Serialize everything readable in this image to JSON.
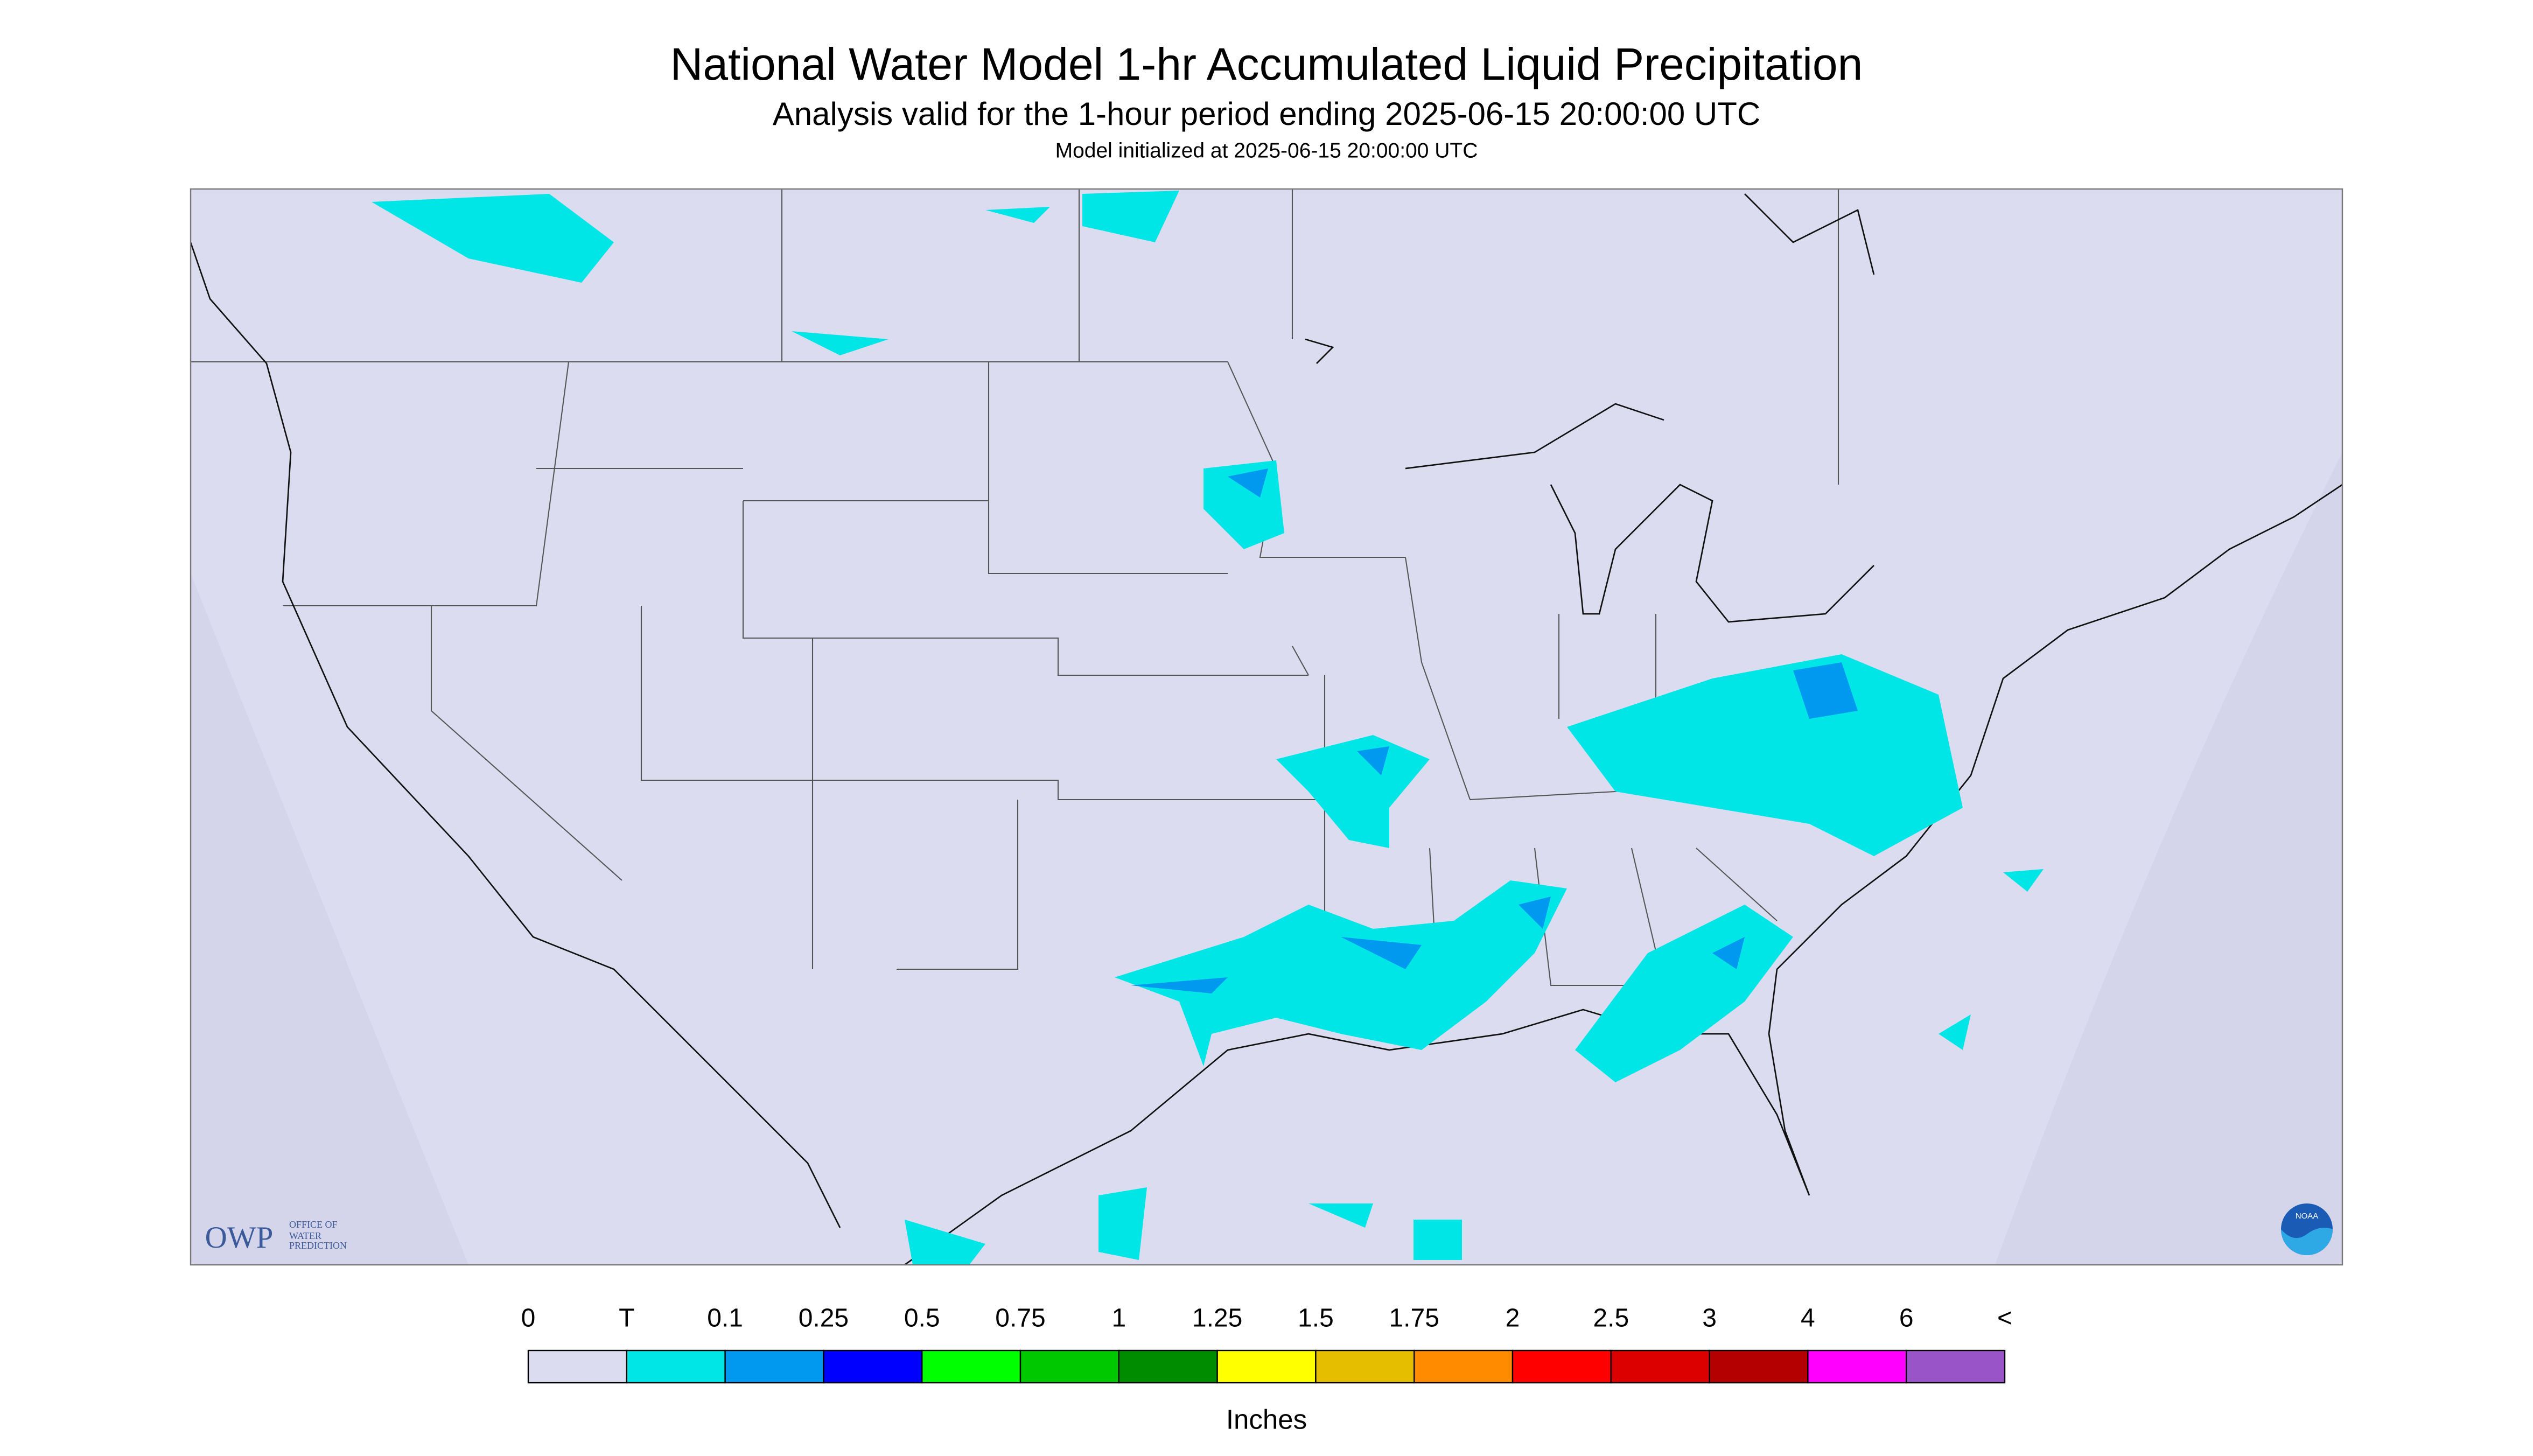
{
  "header": {
    "title": "National Water Model 1-hr Accumulated Liquid Precipitation",
    "subtitle": "Analysis valid for the 1-hour period ending 2025-06-15 20:00:00 UTC",
    "note": "Model initialized at 2025-06-15 20:00:00 UTC"
  },
  "logo": {
    "abbr": "OWP",
    "name": "OFFICE OF WATER PREDICTION",
    "agency": "NOAA"
  },
  "legend": {
    "labels": [
      "0",
      "T",
      "0.1",
      "0.25",
      "0.5",
      "0.75",
      "1",
      "1.25",
      "1.5",
      "1.75",
      "2",
      "2.5",
      "3",
      "4",
      "6",
      "<"
    ],
    "colors": [
      "#dcdcf0",
      "#00e6e6",
      "#0099f0",
      "#0000ff",
      "#00ff00",
      "#00c800",
      "#008c00",
      "#ffff00",
      "#e6be00",
      "#ff8c00",
      "#ff0000",
      "#dc0000",
      "#b40000",
      "#ff00ff",
      "#9955c8"
    ],
    "unit": "Inches"
  }
}
